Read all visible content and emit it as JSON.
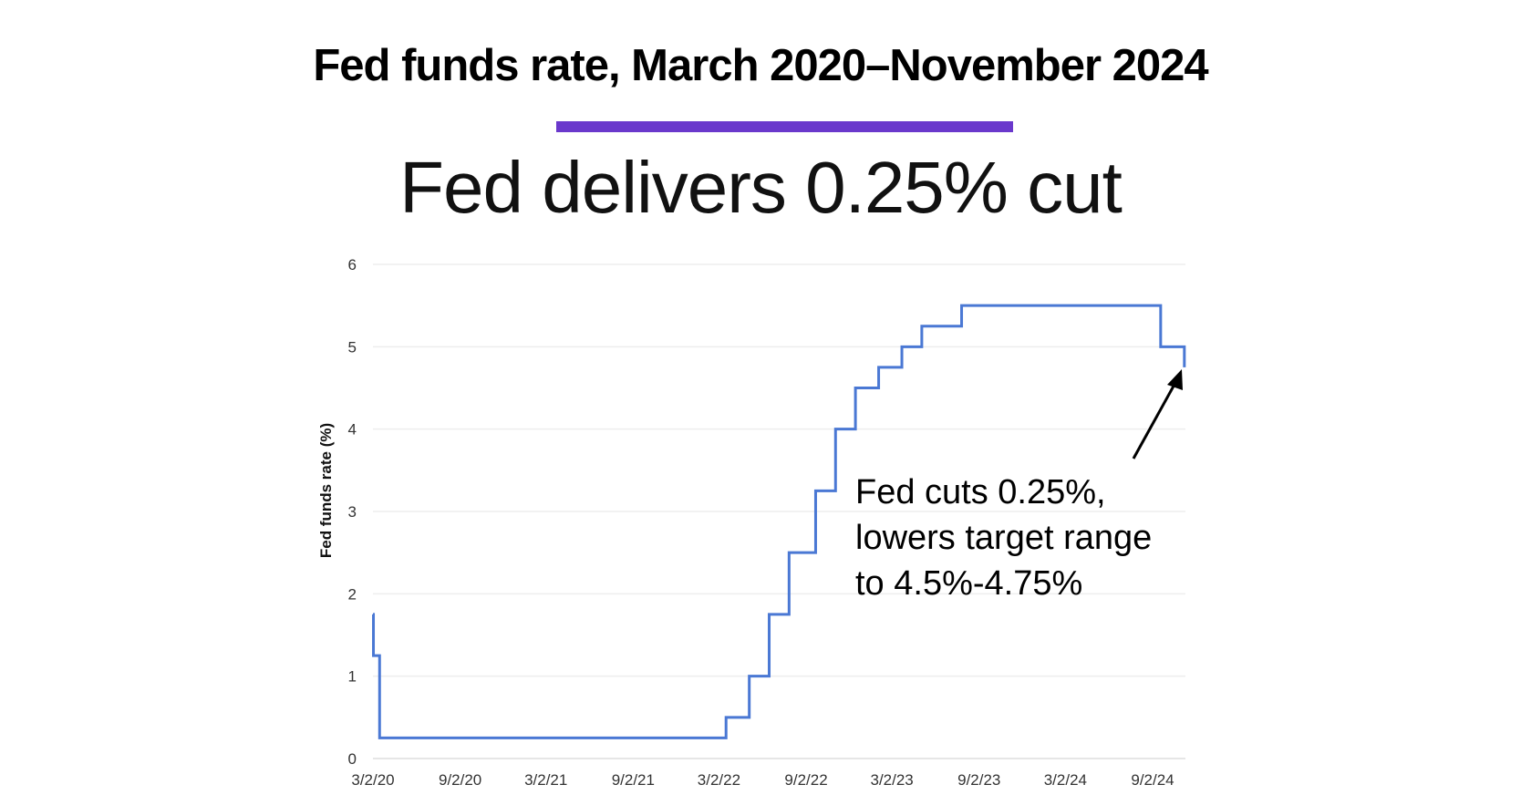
{
  "header": {
    "title": "Fed funds rate, March 2020–November 2024",
    "subtitle": "Fed delivers 0.25% cut",
    "accent_color": "#6a38cc"
  },
  "chart_data": {
    "type": "line",
    "step": true,
    "ylabel": "Fed funds rate (%)",
    "xlabel": "",
    "ylim": [
      0,
      6
    ],
    "yticks": [
      0,
      1,
      2,
      3,
      4,
      5,
      6
    ],
    "xticks": [
      "3/2/20",
      "9/2/20",
      "3/2/21",
      "9/2/21",
      "3/2/22",
      "9/2/22",
      "3/2/23",
      "9/2/23",
      "3/2/24",
      "9/2/24"
    ],
    "grid": true,
    "line_color": "#4a78d4",
    "series": [
      {
        "x": [
          "2020-03-02",
          "2020-03-03",
          "2020-03-16",
          "2022-03-17",
          "2022-05-05",
          "2022-06-16",
          "2022-07-28",
          "2022-09-22",
          "2022-11-03",
          "2022-12-15",
          "2023-02-02",
          "2023-03-23",
          "2023-05-04",
          "2023-07-27",
          "2024-09-19",
          "2024-11-08"
        ],
        "y": [
          1.75,
          1.25,
          0.25,
          0.5,
          1.0,
          1.75,
          2.5,
          3.25,
          4.0,
          4.5,
          4.75,
          5.0,
          5.25,
          5.5,
          5.0,
          4.75
        ]
      }
    ],
    "x_end": "2024-11-11",
    "annotation": {
      "lines": [
        "Fed cuts 0.25%,",
        "lowers target range",
        "to 4.5%-4.75%"
      ],
      "arrow_to": {
        "x": "2024-11-08",
        "y": 4.75
      }
    }
  }
}
